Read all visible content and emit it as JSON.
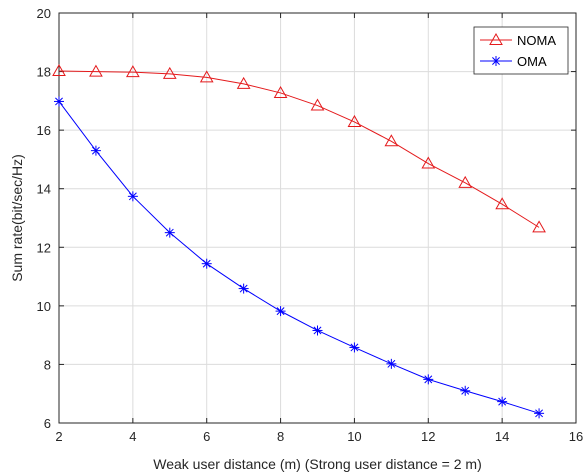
{
  "chart_data": {
    "type": "line",
    "xlabel": "Weak user distance (m) (Strong user distance = 2 m)",
    "ylabel": "Sum rate(bit/sec/Hz)",
    "xlim": [
      2,
      16
    ],
    "ylim": [
      6,
      20
    ],
    "xticks": [
      2,
      4,
      6,
      8,
      10,
      12,
      14,
      16
    ],
    "yticks": [
      6,
      8,
      10,
      12,
      14,
      16,
      18,
      20
    ],
    "grid": true,
    "legend_position": "top-right",
    "x": [
      2,
      3,
      4,
      5,
      6,
      7,
      8,
      9,
      10,
      11,
      12,
      13,
      14,
      15
    ],
    "series": [
      {
        "name": "NOMA",
        "color": "#e41a1c",
        "marker": "triangle",
        "values": [
          18.02,
          18.0,
          17.98,
          17.92,
          17.8,
          17.58,
          17.27,
          16.84,
          16.28,
          15.62,
          14.86,
          14.2,
          13.47,
          12.68
        ]
      },
      {
        "name": "OMA",
        "color": "#0000ff",
        "marker": "asterisk",
        "values": [
          16.98,
          15.3,
          13.74,
          12.5,
          11.44,
          10.59,
          9.82,
          9.16,
          8.58,
          8.02,
          7.49,
          7.1,
          6.73,
          6.33
        ]
      }
    ]
  }
}
